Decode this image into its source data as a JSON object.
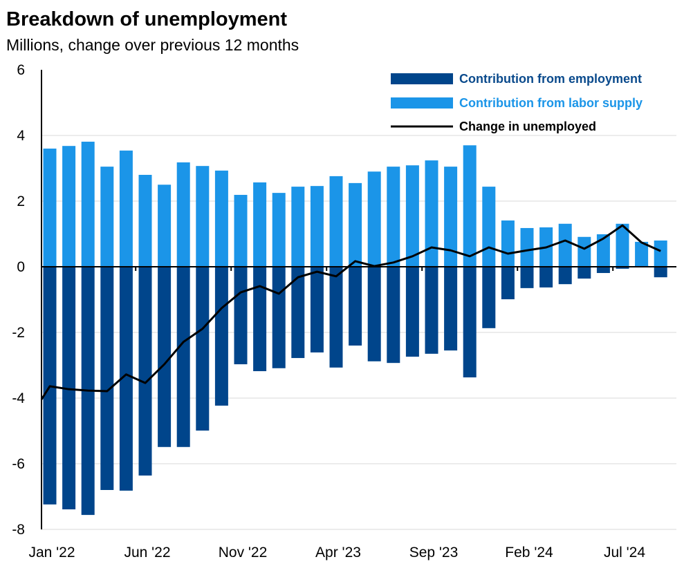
{
  "chart_data": {
    "type": "bar",
    "title": "Breakdown of unemployment",
    "subtitle": "Millions, change over previous 12 months",
    "xlabel": "",
    "ylabel": "",
    "ylim": [
      -8,
      6
    ],
    "yticks": [
      6,
      4,
      2,
      0,
      -2,
      -4,
      -6,
      -8
    ],
    "xtick_labels": [
      "Jan '22",
      "Jun '22",
      "Nov '22",
      "Apr '23",
      "Sep '23",
      "Feb '24",
      "Jul '24"
    ],
    "xtick_index": [
      0,
      5,
      10,
      15,
      20,
      25,
      30
    ],
    "categories": [
      "Jan '22",
      "Feb '22",
      "Mar '22",
      "Apr '22",
      "May '22",
      "Jun '22",
      "Jul '22",
      "Aug '22",
      "Sep '22",
      "Oct '22",
      "Nov '22",
      "Dec '22",
      "Jan '23",
      "Feb '23",
      "Mar '23",
      "Apr '23",
      "May '23",
      "Jun '23",
      "Jul '23",
      "Aug '23",
      "Sep '23",
      "Oct '23",
      "Nov '23",
      "Dec '23",
      "Jan '24",
      "Feb '24",
      "Mar '24",
      "Apr '24",
      "May '24",
      "Jun '24",
      "Jul '24",
      "Aug '24",
      "Sep '24"
    ],
    "grid": true,
    "legend_position": "top-right",
    "series": [
      {
        "name": "Contribution from employment",
        "type": "bar",
        "color": "#00458b",
        "values": [
          -7.24,
          -7.39,
          -7.56,
          -6.8,
          -6.82,
          -6.36,
          -5.49,
          -5.49,
          -4.99,
          -4.23,
          -2.97,
          -3.18,
          -3.09,
          -2.78,
          -2.61,
          -3.07,
          -2.4,
          -2.88,
          -2.93,
          -2.74,
          -2.65,
          -2.55,
          -3.37,
          -1.87,
          -0.99,
          -0.65,
          -0.63,
          -0.53,
          -0.36,
          -0.19,
          -0.06,
          0.05,
          -0.32
        ]
      },
      {
        "name": "Contribution from labor supply",
        "type": "bar",
        "color": "#1b95e8",
        "values": [
          3.6,
          3.68,
          3.81,
          3.05,
          3.54,
          2.8,
          2.5,
          3.18,
          3.07,
          2.93,
          2.19,
          2.57,
          2.25,
          2.44,
          2.46,
          2.76,
          2.55,
          2.9,
          3.05,
          3.09,
          3.24,
          3.05,
          3.7,
          2.44,
          1.41,
          1.18,
          1.2,
          1.31,
          0.91,
          0.99,
          1.31,
          0.76,
          0.8
        ]
      },
      {
        "name": "Change in unemployed",
        "type": "line",
        "color": "#000000",
        "values": [
          -3.64,
          -3.73,
          -3.77,
          -3.79,
          -3.28,
          -3.54,
          -2.97,
          -2.29,
          -1.89,
          -1.26,
          -0.78,
          -0.59,
          -0.82,
          -0.32,
          -0.15,
          -0.29,
          0.17,
          0.02,
          0.13,
          0.32,
          0.59,
          0.5,
          0.32,
          0.59,
          0.4,
          0.5,
          0.59,
          0.8,
          0.55,
          0.86,
          1.26,
          0.74,
          0.48
        ]
      }
    ]
  }
}
